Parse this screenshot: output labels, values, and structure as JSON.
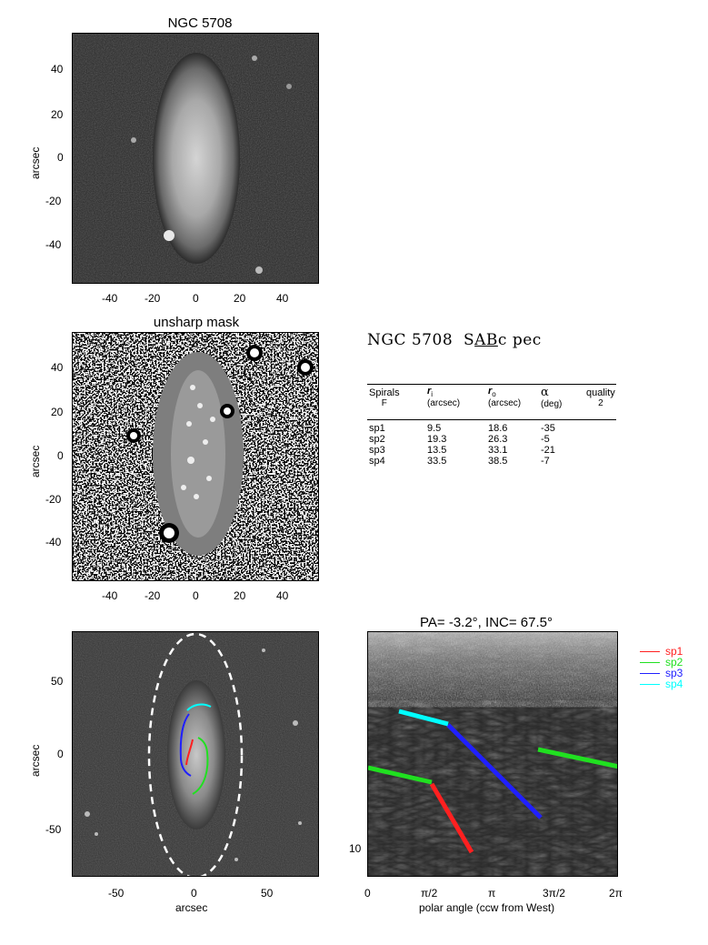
{
  "panel1": {
    "title": "NGC 5708",
    "ylabel": "arcsec",
    "xticks": [
      "-40",
      "-20",
      "0",
      "20",
      "40"
    ],
    "yticks": [
      "40",
      "20",
      "0",
      "-20",
      "-40"
    ]
  },
  "panel2": {
    "title": "unsharp mask",
    "ylabel": "arcsec",
    "xticks": [
      "-40",
      "-20",
      "0",
      "20",
      "40"
    ],
    "yticks": [
      "40",
      "20",
      "0",
      "-20",
      "-40"
    ]
  },
  "panel3": {
    "xlabel": "arcsec",
    "ylabel": "arcsec",
    "xticks": [
      "-50",
      "0",
      "50"
    ],
    "yticks": [
      "50",
      "0",
      "-50"
    ]
  },
  "panel4": {
    "title": "PA=  -3.2°, INC=  67.5°",
    "xlabel": "polar angle (ccw from West)",
    "xticks": [
      "0",
      "π/2",
      "π",
      "3π/2",
      "2π"
    ],
    "yticks": [
      "10"
    ]
  },
  "galaxy": {
    "name": "NGC 5708",
    "type_prefix": "S",
    "type_underlined": "AB",
    "type_suffix": "c pec"
  },
  "table": {
    "headers": [
      {
        "main": "Spirals",
        "sub": "F"
      },
      {
        "main": "r",
        "sub_italic": "i",
        "sub": "(arcsec)"
      },
      {
        "main": "r",
        "sub_italic": "o",
        "sub": "(arcsec)"
      },
      {
        "main": "α",
        "sub": "(deg)"
      },
      {
        "main": "quality",
        "sub": "2"
      }
    ],
    "rows": [
      {
        "name": "sp1",
        "ri": "9.5",
        "ro": "18.6",
        "alpha": "-35"
      },
      {
        "name": "sp2",
        "ri": "19.3",
        "ro": "26.3",
        "alpha": "-5"
      },
      {
        "name": "sp3",
        "ri": "13.5",
        "ro": "33.1",
        "alpha": "-21"
      },
      {
        "name": "sp4",
        "ri": "33.5",
        "ro": "38.5",
        "alpha": "-7"
      }
    ]
  },
  "legend": [
    {
      "label": "sp1",
      "color": "#ff2020"
    },
    {
      "label": "sp2",
      "color": "#20e020"
    },
    {
      "label": "sp3",
      "color": "#2020ff"
    },
    {
      "label": "sp4",
      "color": "#00ffff"
    }
  ]
}
